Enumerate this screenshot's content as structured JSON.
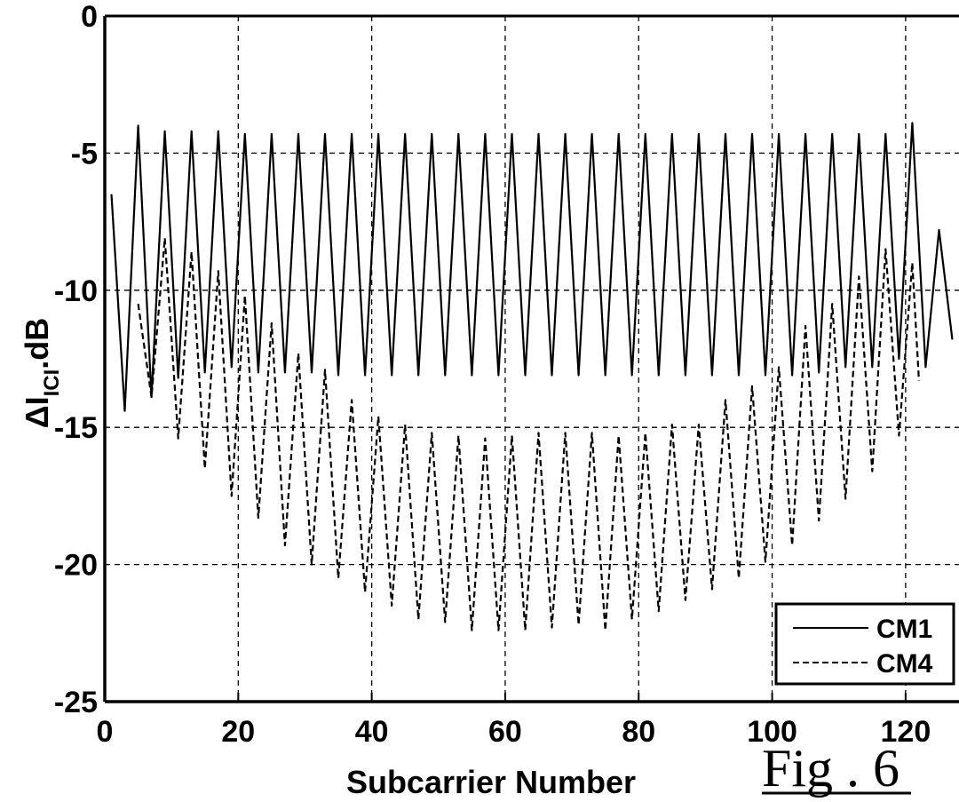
{
  "chart_data": {
    "type": "line",
    "title": "",
    "xlabel": "Subcarrier Number",
    "ylabel_main": "ΔI",
    "ylabel_sub": "ICI",
    "ylabel_tail": ".dB",
    "xlim": [
      0,
      128
    ],
    "ylim": [
      -25,
      0
    ],
    "xticks": [
      0,
      20,
      40,
      60,
      80,
      100,
      120
    ],
    "yticks": [
      0,
      -5,
      -10,
      -15,
      -20,
      -25
    ],
    "xtick_labels": [
      "0",
      "20",
      "40",
      "60",
      "80",
      "100",
      "120"
    ],
    "ytick_labels": [
      "0",
      "-5",
      "-10",
      "-15",
      "-20",
      "-25"
    ],
    "grid": true,
    "legend_position": "bottom-right",
    "series": [
      {
        "name": "CM1",
        "style": "solid",
        "color": "#000000",
        "period": 4,
        "peaks": [
          [
            1,
            -6.5
          ],
          [
            5,
            -4.0
          ],
          [
            9,
            -4.2
          ],
          [
            13,
            -4.2
          ],
          [
            17,
            -4.2
          ],
          [
            21,
            -4.3
          ],
          [
            25,
            -4.3
          ],
          [
            29,
            -4.3
          ],
          [
            33,
            -4.3
          ],
          [
            37,
            -4.3
          ],
          [
            41,
            -4.3
          ],
          [
            45,
            -4.3
          ],
          [
            49,
            -4.3
          ],
          [
            53,
            -4.3
          ],
          [
            57,
            -4.3
          ],
          [
            61,
            -4.3
          ],
          [
            65,
            -4.3
          ],
          [
            69,
            -4.3
          ],
          [
            73,
            -4.3
          ],
          [
            77,
            -4.3
          ],
          [
            81,
            -4.3
          ],
          [
            85,
            -4.3
          ],
          [
            89,
            -4.3
          ],
          [
            93,
            -4.3
          ],
          [
            97,
            -4.3
          ],
          [
            101,
            -4.3
          ],
          [
            105,
            -4.3
          ],
          [
            109,
            -4.3
          ],
          [
            113,
            -4.3
          ],
          [
            117,
            -4.3
          ],
          [
            121,
            -3.9
          ],
          [
            125,
            -7.8
          ]
        ],
        "troughs": [
          [
            3,
            -14.4
          ],
          [
            7,
            -13.9
          ],
          [
            11,
            -13.2
          ],
          [
            15,
            -13.0
          ],
          [
            19,
            -12.8
          ],
          [
            23,
            -13.0
          ],
          [
            27,
            -13.0
          ],
          [
            31,
            -13.0
          ],
          [
            35,
            -13.1
          ],
          [
            39,
            -13.1
          ],
          [
            43,
            -13.1
          ],
          [
            47,
            -13.1
          ],
          [
            51,
            -13.1
          ],
          [
            55,
            -13.1
          ],
          [
            59,
            -13.1
          ],
          [
            63,
            -13.1
          ],
          [
            67,
            -13.1
          ],
          [
            71,
            -13.1
          ],
          [
            75,
            -13.1
          ],
          [
            79,
            -13.1
          ],
          [
            83,
            -13.1
          ],
          [
            87,
            -13.1
          ],
          [
            91,
            -13.1
          ],
          [
            95,
            -13.1
          ],
          [
            99,
            -13.1
          ],
          [
            103,
            -13.1
          ],
          [
            107,
            -13.0
          ],
          [
            111,
            -12.8
          ],
          [
            115,
            -12.8
          ],
          [
            119,
            -12.5
          ],
          [
            123,
            -12.8
          ],
          [
            127,
            -11.8
          ]
        ]
      },
      {
        "name": "CM4",
        "style": "dashed",
        "color": "#000000",
        "period": 4,
        "start": [
          5,
          -10.5
        ],
        "end": [
          122,
          -13.3
        ],
        "peaks": [
          [
            9,
            -8.1
          ],
          [
            13,
            -8.6
          ],
          [
            17,
            -9.3
          ],
          [
            21,
            -10.2
          ],
          [
            25,
            -11.2
          ],
          [
            29,
            -12.3
          ],
          [
            33,
            -12.9
          ],
          [
            37,
            -14.0
          ],
          [
            41,
            -14.6
          ],
          [
            45,
            -14.9
          ],
          [
            49,
            -15.2
          ],
          [
            53,
            -15.3
          ],
          [
            57,
            -15.4
          ],
          [
            61,
            -15.3
          ],
          [
            65,
            -15.2
          ],
          [
            69,
            -15.2
          ],
          [
            73,
            -15.2
          ],
          [
            77,
            -15.3
          ],
          [
            81,
            -15.2
          ],
          [
            85,
            -14.9
          ],
          [
            89,
            -14.9
          ],
          [
            93,
            -14.0
          ],
          [
            97,
            -13.5
          ],
          [
            101,
            -12.8
          ],
          [
            105,
            -11.3
          ],
          [
            109,
            -10.5
          ],
          [
            113,
            -9.5
          ],
          [
            117,
            -8.5
          ],
          [
            121,
            -9.0
          ]
        ],
        "troughs": [
          [
            7,
            -13.9
          ],
          [
            11,
            -15.4
          ],
          [
            15,
            -16.5
          ],
          [
            19,
            -17.5
          ],
          [
            23,
            -18.3
          ],
          [
            27,
            -19.3
          ],
          [
            31,
            -20.0
          ],
          [
            35,
            -20.5
          ],
          [
            39,
            -21.0
          ],
          [
            43,
            -21.5
          ],
          [
            47,
            -22.0
          ],
          [
            51,
            -22.1
          ],
          [
            55,
            -22.4
          ],
          [
            59,
            -22.4
          ],
          [
            63,
            -22.4
          ],
          [
            67,
            -22.3
          ],
          [
            71,
            -22.2
          ],
          [
            75,
            -22.4
          ],
          [
            79,
            -22.0
          ],
          [
            83,
            -21.7
          ],
          [
            87,
            -21.3
          ],
          [
            91,
            -20.9
          ],
          [
            95,
            -20.5
          ],
          [
            99,
            -19.9
          ],
          [
            103,
            -19.3
          ],
          [
            107,
            -18.4
          ],
          [
            111,
            -17.6
          ],
          [
            115,
            -16.6
          ],
          [
            119,
            -15.3
          ]
        ]
      }
    ]
  },
  "figure_label": "Fig . 6"
}
